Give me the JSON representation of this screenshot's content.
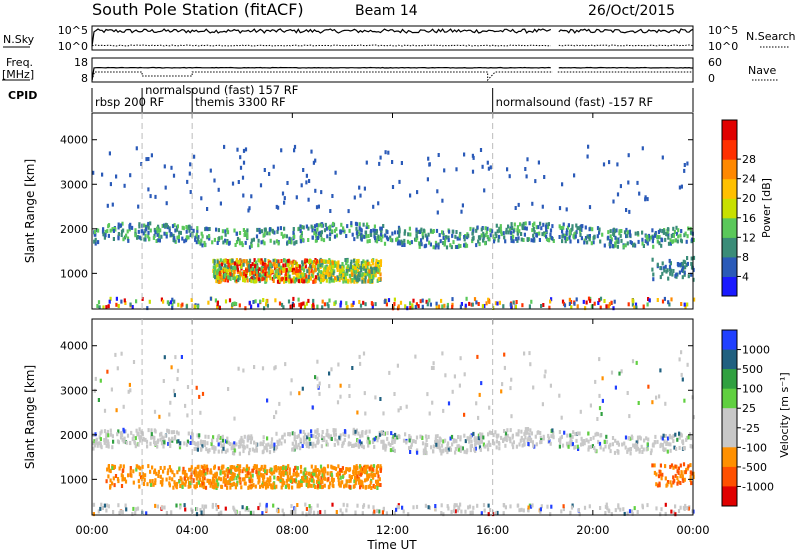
{
  "header": {
    "title": "South Pole Station (fitACF)",
    "beam": "Beam 14",
    "date": "26/Oct/2015"
  },
  "top_panels": {
    "nsky_label": "N.Sky",
    "nsky_ticks": [
      "10^5",
      "10^0"
    ],
    "nsearch_label": "N.Search",
    "nsearch_ticks": [
      "10^5",
      "10^0"
    ],
    "freq_label_line1": "Freq.",
    "freq_label_line2": "[MHz]",
    "freq_ticks": [
      "18",
      "8"
    ],
    "nave_label": "Nave",
    "nave_ticks": [
      "60",
      "0"
    ],
    "cpid_label": "CPID",
    "cpid_segments": [
      {
        "label": "rbsp 200 RF",
        "start_h": 0.0,
        "end_h": 2.0
      },
      {
        "label": "normalsound (fast) 157 RF",
        "start_h": 2.0,
        "end_h": 4.0
      },
      {
        "label": "themis 3300 RF",
        "start_h": 4.0,
        "end_h": 16.0
      },
      {
        "label": "normalsound (fast) -157 RF",
        "start_h": 16.0,
        "end_h": 24.0
      }
    ]
  },
  "x_axis": {
    "label": "Time UT",
    "ticks": [
      "00:00",
      "04:00",
      "08:00",
      "12:00",
      "16:00",
      "20:00",
      "00:00"
    ]
  },
  "chart_data": [
    {
      "type": "heatmap",
      "name": "power",
      "ylabel": "Slant Range [km]",
      "xlim_hours": [
        0,
        24
      ],
      "ylim_km": [
        200,
        4600
      ],
      "yticks": [
        "1000",
        "2000",
        "3000",
        "4000"
      ],
      "colorbar_label": "Power [dB]",
      "colorbar_ticks": [
        "4",
        "8",
        "12",
        "16",
        "20",
        "24",
        "28"
      ],
      "colors": [
        "#1a1aff",
        "#2a5ab8",
        "#3a8c78",
        "#5ac85a",
        "#c8e000",
        "#ffc000",
        "#ff8800",
        "#ff3000",
        "#e00000"
      ],
      "data_gap_hours": [
        18.4,
        18.6
      ],
      "echo_regions": [
        {
          "t_start": 0.0,
          "t_end": 24.0,
          "r_center_km": 1900,
          "r_width_km": 350,
          "level": "low-mid"
        },
        {
          "t_start": 5.0,
          "t_end": 11.5,
          "r_center_km": 1100,
          "r_width_km": 450,
          "level": "high"
        },
        {
          "t_start": 0.0,
          "t_end": 24.0,
          "r_center_km": 350,
          "r_width_km": 150,
          "level": "scattered"
        }
      ]
    },
    {
      "type": "heatmap",
      "name": "velocity",
      "ylabel": "Slant Range [km]",
      "xlim_hours": [
        0,
        24
      ],
      "ylim_km": [
        200,
        4600
      ],
      "yticks": [
        "1000",
        "2000",
        "3000",
        "4000"
      ],
      "colorbar_label": "Velocity [m s⁻¹]",
      "colorbar_ticks": [
        "1000",
        "500",
        "100",
        "25",
        "-25",
        "-100",
        "-500",
        "-1000"
      ],
      "colors": [
        "#2040ff",
        "#206080",
        "#30a040",
        "#60d040",
        "#c8c8c8",
        "#c8c8c8",
        "#ff9000",
        "#ff5000",
        "#e00000"
      ],
      "data_gap_hours": [
        18.4,
        18.6
      ],
      "echo_regions": [
        {
          "t_start": 0.0,
          "t_end": 24.0,
          "r_center_km": 1900,
          "r_width_km": 350,
          "level": "ground-scatter"
        },
        {
          "t_start": 0.5,
          "t_end": 11.5,
          "r_center_km": 1100,
          "r_width_km": 450,
          "level": "negative"
        }
      ]
    }
  ]
}
